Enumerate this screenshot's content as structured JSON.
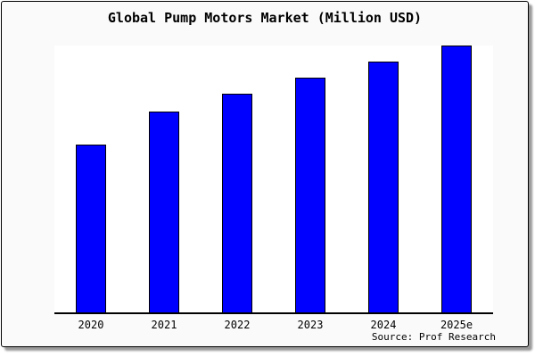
{
  "page": {
    "title": "Global Pump Motors Market (Million USD)",
    "source_note": "Source: Prof Research"
  },
  "colors": {
    "bar_fill": "#0000ff",
    "bar_edge": "#000000",
    "card_background": "#fafafa",
    "plot_background": "#ffffff",
    "card_border": "#000000",
    "card_shadow": "#999999",
    "text": "#000000"
  },
  "chart_data": {
    "type": "bar",
    "title": "Global Pump Motors Market (Million USD)",
    "categories": [
      "2020",
      "2021",
      "2022",
      "2023",
      "2024",
      "2025e"
    ],
    "values": [
      62.9,
      75.3,
      81.9,
      88.0,
      94.0,
      100.0
    ],
    "value_note": "No y-axis ticks, labels or gridlines shown; values are relative bar heights with tallest bar (2025e) = 100",
    "xlabel": "",
    "ylabel": "",
    "ylim": [
      0,
      100.5
    ],
    "grid": false,
    "legend": false,
    "annotations": [
      "Source: Prof Research"
    ]
  }
}
